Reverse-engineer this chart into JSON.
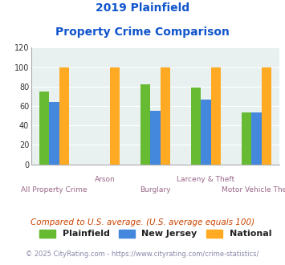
{
  "title_line1": "2019 Plainfield",
  "title_line2": "Property Crime Comparison",
  "x_labels_row1": [
    "",
    "Arson",
    "",
    "Larceny & Theft",
    ""
  ],
  "x_labels_row2": [
    "All Property Crime",
    "",
    "Burglary",
    "",
    "Motor Vehicle Theft"
  ],
  "plainfield": [
    75,
    0,
    82,
    79,
    53
  ],
  "new_jersey": [
    64,
    0,
    55,
    67,
    53
  ],
  "national": [
    100,
    100,
    100,
    100,
    100
  ],
  "color_plainfield": "#66bb33",
  "color_nj": "#4488dd",
  "color_national": "#ffaa22",
  "ylabel_max": 120,
  "yticks": [
    0,
    20,
    40,
    60,
    80,
    100,
    120
  ],
  "legend_labels": [
    "Plainfield",
    "New Jersey",
    "National"
  ],
  "note": "Compared to U.S. average. (U.S. average equals 100)",
  "footer": "© 2025 CityRating.com - https://www.cityrating.com/crime-statistics/",
  "bg_color": "#e8f0f0",
  "title_color": "#1155cc",
  "xlabel_color": "#996688",
  "note_color": "#cc4400",
  "footer_color": "#8888aa"
}
